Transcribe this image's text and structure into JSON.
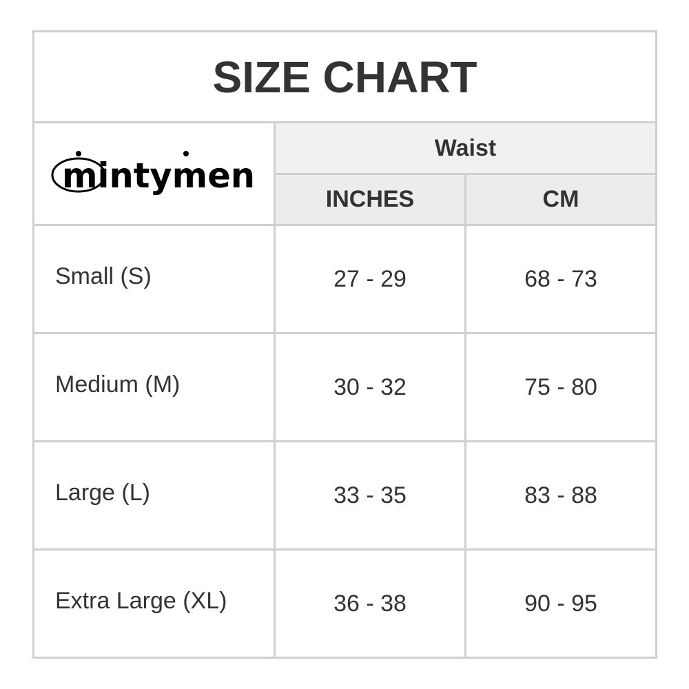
{
  "title": "SIZE CHART",
  "logo": {
    "text": "mintymen"
  },
  "header": {
    "group": "Waist",
    "columns": [
      "INCHES",
      "CM"
    ]
  },
  "rows": [
    {
      "size": "Small (S)",
      "inches": "27 - 29",
      "cm": "68 - 73"
    },
    {
      "size": "Medium (M)",
      "inches": "30 - 32",
      "cm": "75 - 80"
    },
    {
      "size": "Large (L)",
      "inches": "33 - 35",
      "cm": "83 - 88"
    },
    {
      "size": "Extra Large (XL)",
      "inches": "36 - 38",
      "cm": "90 - 95"
    }
  ]
}
